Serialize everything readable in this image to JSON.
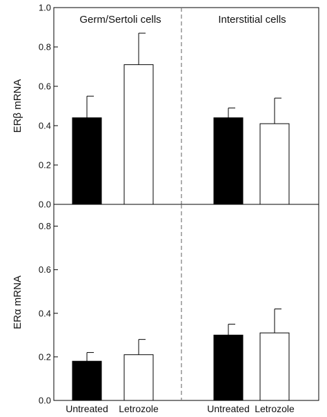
{
  "chart_data": [
    {
      "type": "bar",
      "panel": "top",
      "ylabel": "ERβ mRNA",
      "ylim": [
        0,
        1.0
      ],
      "yticks": [
        "0.0",
        "0.2",
        "0.4",
        "0.6",
        "0.8",
        "1.0"
      ],
      "groups": [
        {
          "title": "Germ/Sertoli cells",
          "bars": [
            {
              "category": "Untreated",
              "value": 0.44,
              "error": 0.11,
              "fill": "#000000"
            },
            {
              "category": "Letrozole",
              "value": 0.71,
              "error": 0.16,
              "fill": "#ffffff"
            }
          ]
        },
        {
          "title": "Interstitial cells",
          "bars": [
            {
              "category": "Untreated",
              "value": 0.44,
              "error": 0.05,
              "fill": "#000000"
            },
            {
              "category": "Letrozole",
              "value": 0.41,
              "error": 0.13,
              "fill": "#ffffff"
            }
          ]
        }
      ]
    },
    {
      "type": "bar",
      "panel": "bottom",
      "ylabel": "ERα mRNA",
      "ylim": [
        0,
        0.9
      ],
      "yticks": [
        "0.0",
        "0.2",
        "0.4",
        "0.6",
        "0.8"
      ],
      "groups": [
        {
          "title": "",
          "bars": [
            {
              "category": "Untreated",
              "value": 0.18,
              "error": 0.04,
              "fill": "#000000"
            },
            {
              "category": "Letrozole",
              "value": 0.21,
              "error": 0.07,
              "fill": "#ffffff"
            }
          ]
        },
        {
          "title": "",
          "bars": [
            {
              "category": "Untreated",
              "value": 0.3,
              "error": 0.05,
              "fill": "#000000"
            },
            {
              "category": "Letrozole",
              "value": 0.31,
              "error": 0.11,
              "fill": "#ffffff"
            }
          ]
        }
      ]
    }
  ],
  "x_category_labels": [
    "Untreated",
    "Letrozole",
    "Untreated",
    "Letrozole"
  ]
}
